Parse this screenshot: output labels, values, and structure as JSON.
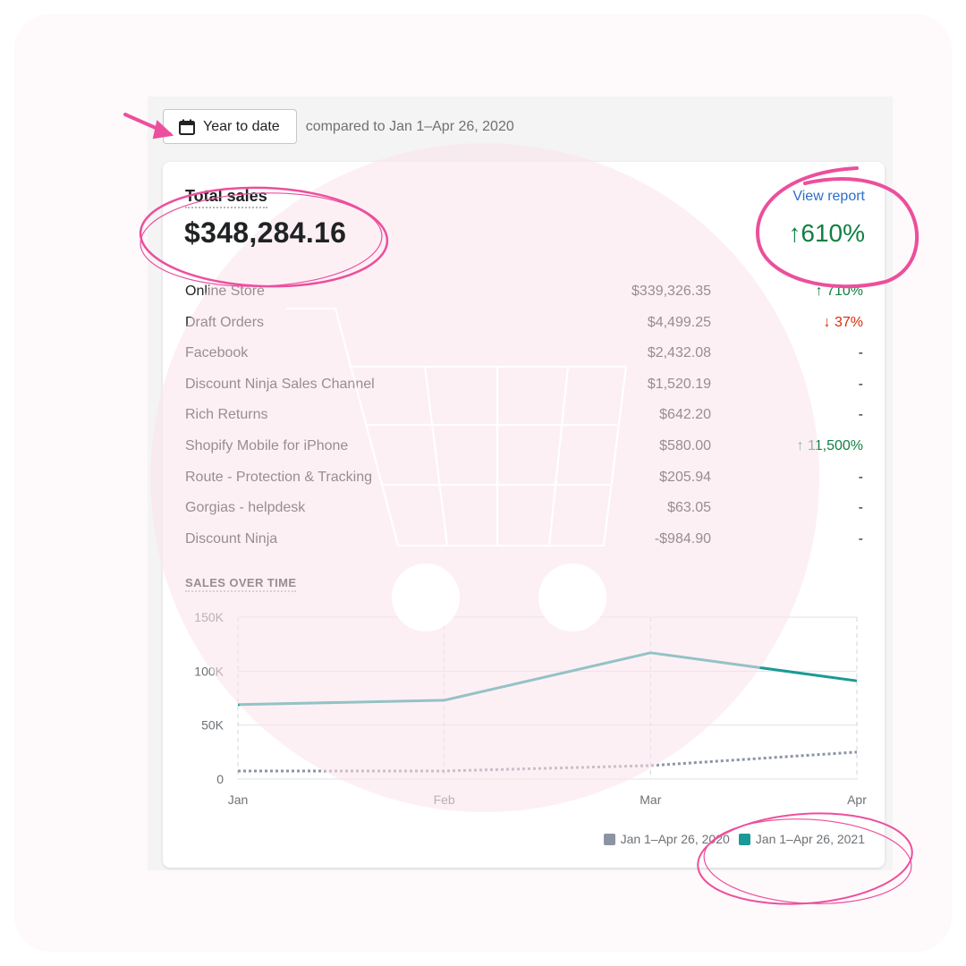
{
  "toolbar": {
    "date_button_label": "Year to date",
    "compare_text": "compared to Jan 1–Apr 26, 2020"
  },
  "card": {
    "title": "Total sales",
    "amount": "$348,284.16",
    "view_report": "View report",
    "change": "↑610%"
  },
  "channels": [
    {
      "name": "Online Store",
      "value": "$339,326.35",
      "change": "↑ 710%",
      "dir": "up"
    },
    {
      "name": "Draft Orders",
      "value": "$4,499.25",
      "change": "↓ 37%",
      "dir": "down"
    },
    {
      "name": "Facebook",
      "value": "$2,432.08",
      "change": "-",
      "dir": "none"
    },
    {
      "name": "Discount Ninja Sales Channel",
      "value": "$1,520.19",
      "change": "-",
      "dir": "none"
    },
    {
      "name": "Rich Returns",
      "value": "$642.20",
      "change": "-",
      "dir": "none"
    },
    {
      "name": "Shopify Mobile for iPhone",
      "value": "$580.00",
      "change": "↑ 11,500%",
      "dir": "up"
    },
    {
      "name": "Route - Protection & Tracking",
      "value": "$205.94",
      "change": "-",
      "dir": "none"
    },
    {
      "name": "Gorgias - helpdesk",
      "value": "$63.05",
      "change": "-",
      "dir": "none"
    },
    {
      "name": "Discount Ninja",
      "value": "-$984.90",
      "change": "-",
      "dir": "none"
    }
  ],
  "sales_over_time_label": "SALES OVER TIME",
  "colors": {
    "current": "#1a9a96",
    "previous": "#8c94a3",
    "accent_pink": "#ec4f9c"
  },
  "chart_data": {
    "type": "line",
    "categories": [
      "Jan",
      "Feb",
      "Mar",
      "Apr"
    ],
    "y_ticks": [
      "150K",
      "100K",
      "50K",
      "0"
    ],
    "ylim": [
      0,
      150000
    ],
    "series": [
      {
        "name": "Jan 1–Apr 26, 2020",
        "values": [
          7500,
          7500,
          12500,
          25000
        ],
        "style": "dotted"
      },
      {
        "name": "Jan 1–Apr 26, 2021",
        "values": [
          69000,
          73000,
          117000,
          91000
        ],
        "style": "solid"
      }
    ],
    "legend": "bottom-right"
  }
}
